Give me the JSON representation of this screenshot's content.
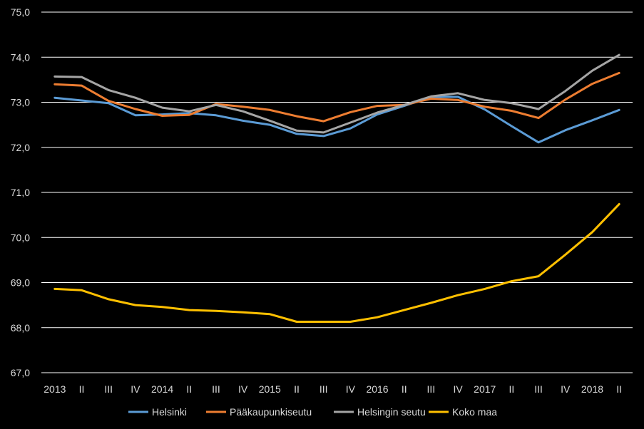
{
  "chart_data": {
    "type": "line",
    "title": "",
    "xlabel": "",
    "ylabel": "",
    "ylim": [
      67.0,
      75.0
    ],
    "yticks": [
      "67,0",
      "68,0",
      "69,0",
      "70,0",
      "71,0",
      "72,0",
      "73,0",
      "74,0",
      "75,0"
    ],
    "ytick_values": [
      67,
      68,
      69,
      70,
      71,
      72,
      73,
      74,
      75
    ],
    "categories": [
      "2013",
      "II",
      "III",
      "IV",
      "2014",
      "II",
      "III",
      "IV",
      "2015",
      "II",
      "III",
      "IV",
      "2016",
      "II",
      "III",
      "IV",
      "2017",
      "II",
      "III",
      "IV",
      "2018",
      "II"
    ],
    "grid": true,
    "legend_position": "bottom",
    "series": [
      {
        "name": "Helsinki",
        "color": "#5b9bd5",
        "values": [
          73.1,
          73.04,
          72.98,
          72.71,
          72.73,
          72.76,
          72.71,
          72.59,
          72.5,
          72.3,
          72.25,
          72.42,
          72.73,
          72.92,
          73.12,
          73.12,
          72.84,
          72.47,
          72.11,
          72.38,
          72.6,
          72.83
        ]
      },
      {
        "name": "Pääkaupunkiseutu",
        "color": "#ed7d31",
        "values": [
          73.4,
          73.37,
          73.03,
          72.85,
          72.7,
          72.72,
          72.96,
          72.9,
          72.83,
          72.69,
          72.58,
          72.78,
          72.92,
          72.94,
          73.08,
          73.05,
          72.9,
          72.81,
          72.65,
          73.06,
          73.41,
          73.65
        ]
      },
      {
        "name": "Helsingin seutu",
        "color": "#a5a5a5",
        "values": [
          73.57,
          73.56,
          73.27,
          73.1,
          72.88,
          72.8,
          72.94,
          72.8,
          72.59,
          72.37,
          72.33,
          72.55,
          72.77,
          72.94,
          73.13,
          73.2,
          73.05,
          72.98,
          72.85,
          73.25,
          73.7,
          74.05
        ]
      },
      {
        "name": "Koko maa",
        "color": "#ffc000",
        "values": [
          68.86,
          68.83,
          68.63,
          68.5,
          68.46,
          68.39,
          68.37,
          68.34,
          68.3,
          68.13,
          68.13,
          68.13,
          68.23,
          68.39,
          68.55,
          68.72,
          68.86,
          69.03,
          69.14,
          69.62,
          70.12,
          70.74
        ]
      }
    ]
  }
}
